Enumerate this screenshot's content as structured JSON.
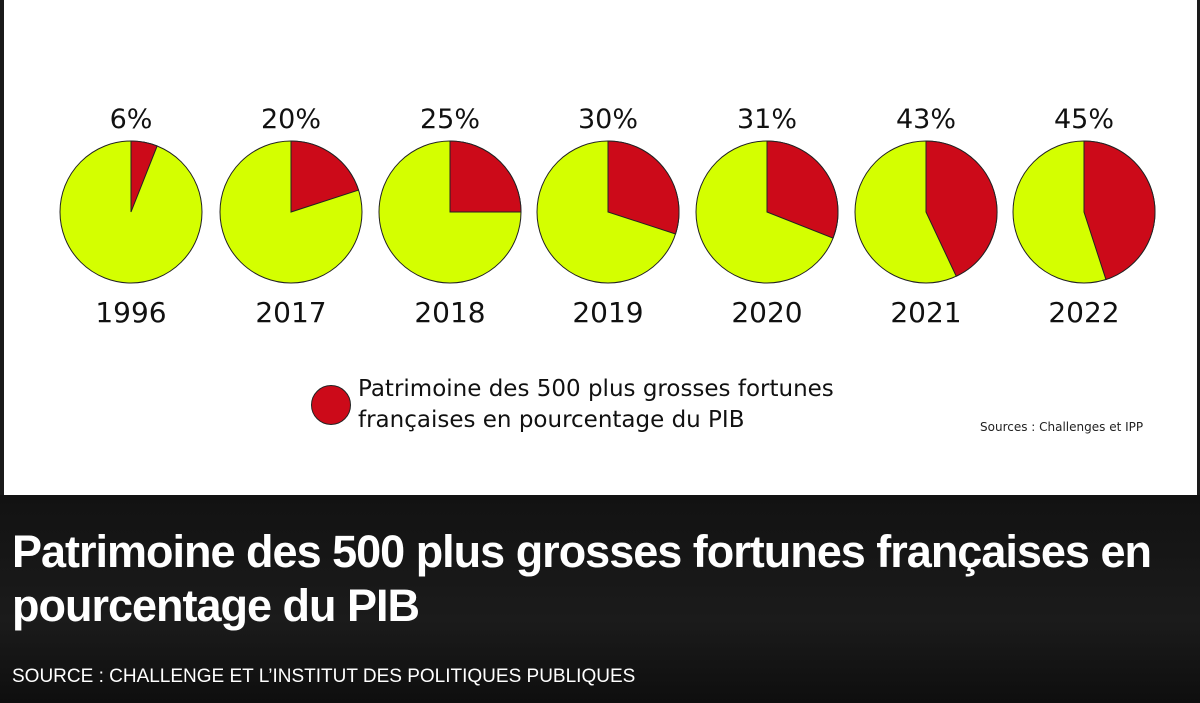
{
  "chart_data": {
    "type": "pie",
    "categories": [
      "1996",
      "2017",
      "2018",
      "2019",
      "2020",
      "2021",
      "2022"
    ],
    "values": [
      6,
      20,
      25,
      30,
      31,
      43,
      45
    ],
    "value_labels": [
      "6%",
      "20%",
      "25%",
      "30%",
      "31%",
      "43%",
      "45%"
    ],
    "unit": "%",
    "legend": "Patrimoine des 500 plus grosses fortunes françaises en pourcentage du PIB",
    "legend_position": "bottom-center",
    "colors": {
      "share": "#cc0a19",
      "rest": "#d4ff00",
      "outline": "#222222"
    },
    "source": "Sources : Challenges et IPP"
  },
  "caption": {
    "title": "Patrimoine des 500 plus grosses fortunes françaises en pourcentage du PIB",
    "source": "SOURCE : CHALLENGE ET L’INSTITUT DES POLITIQUES PUBLIQUES"
  }
}
